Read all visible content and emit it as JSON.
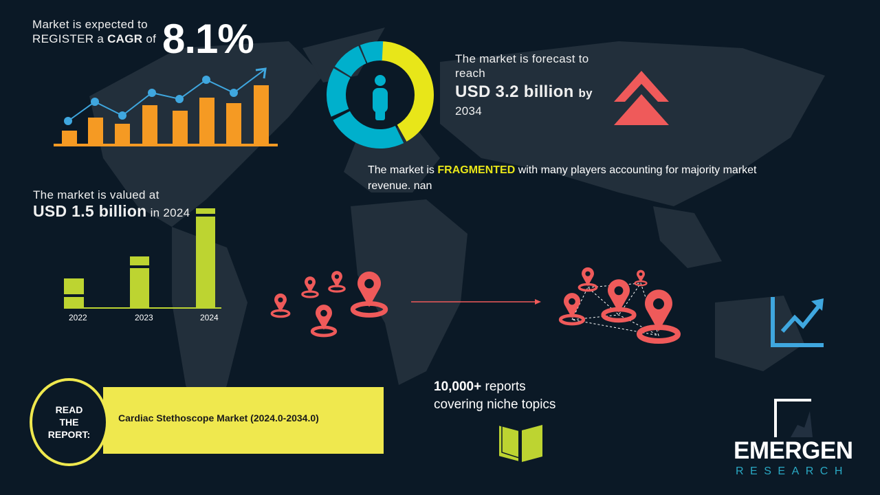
{
  "cagr": {
    "line1": "Market is expected to",
    "line2_pre": "REGISTER a ",
    "line2_bold": "CAGR",
    "line2_post": " of",
    "value": "8.1%"
  },
  "forecast": {
    "line1": "The market is forecast to",
    "line2": "reach",
    "amount": "USD 3.2 billion",
    "by": "by",
    "year": "2034"
  },
  "fragmented": {
    "pre": "The market is ",
    "highlight": "FRAGMENTED",
    "post": " with many players accounting for majority market",
    "line2": "revenue. nan"
  },
  "valued": {
    "line1": "The market is valued at",
    "amount": "USD 1.5 billion",
    "suffix": "in 2024"
  },
  "value_bars": {
    "categories": [
      "2022",
      "2023",
      "2024"
    ]
  },
  "reports": {
    "line1_bold": "10,000+",
    "line1_rest": " reports",
    "line2": "covering niche topics"
  },
  "read_report": {
    "line1": "READ",
    "line2": "THE",
    "line3": "REPORT:",
    "title": "Cardiac Stethoscope Market (2024.0-2034.0)"
  },
  "logo": {
    "name": "EMERGEN",
    "sub": "RESEARCH"
  },
  "colors": {
    "background": "#0b1926",
    "orange": "#f59a23",
    "blue": "#3fa7df",
    "yellow": "#e8e619",
    "teal": "#00b0cc",
    "green": "#bdd431",
    "red": "#ef5a5a",
    "report_band": "#efe84e"
  }
}
